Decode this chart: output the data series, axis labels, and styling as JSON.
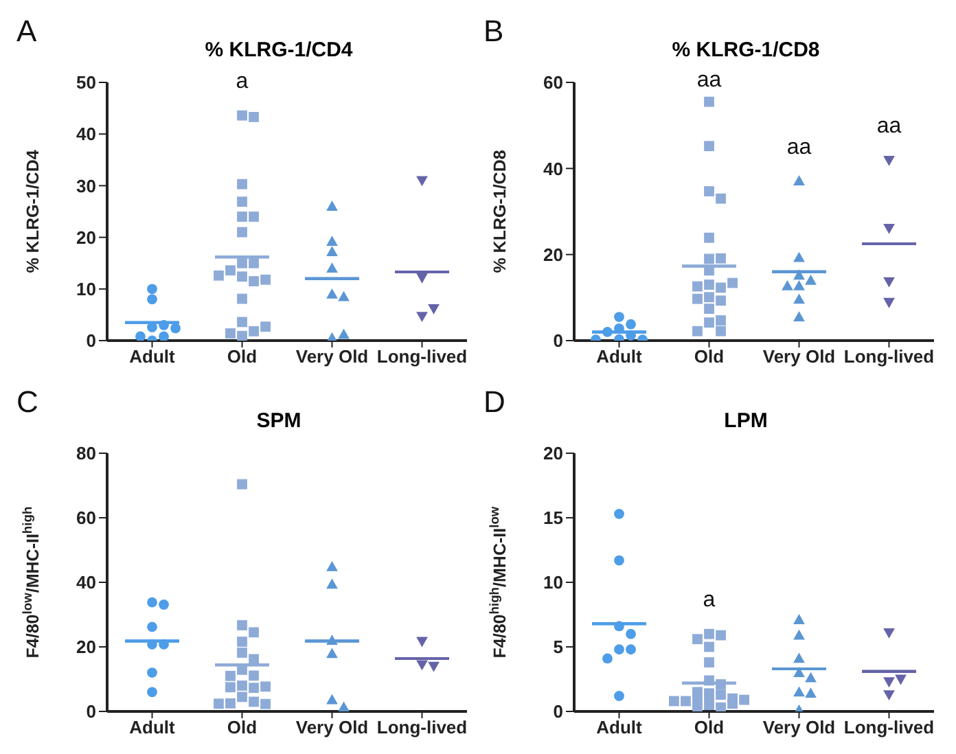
{
  "chart_data": [
    {
      "type": "scatter",
      "title": "% KLRG-1/CD4",
      "ylabel": "% KLRG-1/CD4",
      "categories": [
        "Adult",
        "Old",
        "Very Old",
        "Long-lived"
      ],
      "ylim": [
        0,
        50
      ],
      "yticks": [
        0,
        10,
        20,
        30,
        40,
        50
      ],
      "grid": false,
      "legend": false,
      "annotations": [
        "A",
        "a"
      ],
      "series": [
        {
          "type": "scatter",
          "color": "#4d9de8",
          "marker": "circle",
          "x": [
            "Adult",
            "Adult",
            "Adult",
            "Adult",
            "Adult",
            "Adult",
            "Adult",
            "Adult"
          ],
          "values": [
            10,
            8,
            2.6,
            0.8,
            0,
            0.8,
            2.4,
            3
          ]
        },
        {
          "type": "scatter",
          "color": "#8eabd8",
          "marker": "square",
          "x": [
            "Old",
            "Old",
            "Old",
            "Old",
            "Old",
            "Old",
            "Old",
            "Old",
            "Old",
            "Old",
            "Old",
            "Old",
            "Old",
            "Old",
            "Old",
            "Old",
            "Old",
            "Old",
            "Old",
            "Old"
          ],
          "values": [
            43.6,
            43.3,
            30.3,
            26.9,
            24,
            24,
            21,
            15,
            15,
            13.6,
            12.4,
            11.5,
            11.8,
            12.6,
            8.1,
            3.6,
            1.8,
            0.9,
            1.4,
            2.7
          ]
        },
        {
          "type": "scatter",
          "color": "#5b96d4",
          "marker": "triangle",
          "x": [
            "Very Old",
            "Very Old",
            "Very Old",
            "Very Old",
            "Very Old",
            "Very Old",
            "Very Old",
            "Very Old"
          ],
          "values": [
            26,
            19.2,
            17.2,
            14,
            9,
            8.5,
            0.5,
            1.2
          ]
        },
        {
          "type": "scatter",
          "color": "#6563a8",
          "marker": "triangle-down",
          "x": [
            "Long-lived",
            "Long-lived",
            "Long-lived",
            "Long-lived"
          ],
          "values": [
            31,
            12.2,
            4.7,
            6.2
          ]
        },
        {
          "type": "box",
          "colors": [
            "#4d9de8",
            "#8eabd8",
            "#5b96d4",
            "#6563a8"
          ],
          "boxes": [
            {
              "low": 3.5,
              "q1": 3.5,
              "median": 3.5,
              "q3": 3.5,
              "high": 3.5
            },
            {
              "low": 16.2,
              "q1": 16.2,
              "median": 16.2,
              "q3": 16.2,
              "high": 16.2
            },
            {
              "low": 12,
              "q1": 12,
              "median": 12,
              "q3": 12,
              "high": 12
            },
            {
              "low": 13.3,
              "q1": 13.3,
              "median": 13.3,
              "q3": 13.3,
              "high": 13.3
            }
          ]
        }
      ]
    },
    {
      "type": "scatter",
      "title": "% KLRG-1/CD8",
      "ylabel": "% KLRG-1/CD8",
      "categories": [
        "Adult",
        "Old",
        "Very Old",
        "Long-lived"
      ],
      "ylim": [
        0,
        60
      ],
      "yticks": [
        0,
        20,
        40,
        60
      ],
      "grid": false,
      "legend": false,
      "annotations": [
        "B",
        "aa",
        "aa",
        "aa"
      ],
      "series": [
        {
          "type": "scatter",
          "color": "#4d9de8",
          "marker": "circle",
          "x": [
            "Adult",
            "Adult",
            "Adult",
            "Adult",
            "Adult",
            "Adult",
            "Adult",
            "Adult"
          ],
          "values": [
            5.5,
            3.8,
            2.8,
            2,
            1.2,
            0.3,
            0.2,
            0.2
          ]
        },
        {
          "type": "scatter",
          "color": "#8eabd8",
          "marker": "square",
          "x": [
            "Old",
            "Old",
            "Old",
            "Old",
            "Old",
            "Old",
            "Old",
            "Old",
            "Old",
            "Old",
            "Old",
            "Old",
            "Old",
            "Old",
            "Old",
            "Old",
            "Old",
            "Old",
            "Old",
            "Old"
          ],
          "values": [
            55.5,
            45.2,
            34.7,
            33,
            23.9,
            19,
            19.1,
            16.3,
            13,
            12.3,
            12.6,
            13.4,
            10.1,
            9.3,
            9.7,
            7.4,
            4.2,
            4.7,
            2.2,
            2.2
          ]
        },
        {
          "type": "scatter",
          "color": "#5b96d4",
          "marker": "triangle",
          "x": [
            "Very Old",
            "Very Old",
            "Very Old",
            "Very Old",
            "Very Old",
            "Very Old",
            "Very Old",
            "Very Old"
          ],
          "values": [
            37.1,
            19.3,
            15.2,
            14,
            12.7,
            12.7,
            9.6,
            5.5
          ]
        },
        {
          "type": "scatter",
          "color": "#6563a8",
          "marker": "triangle-down",
          "x": [
            "Long-lived",
            "Long-lived",
            "Long-lived",
            "Long-lived"
          ],
          "values": [
            41.9,
            26.1,
            13.7,
            8.9
          ]
        },
        {
          "type": "box",
          "colors": [
            "#4d9de8",
            "#8eabd8",
            "#5b96d4",
            "#6563a8"
          ],
          "boxes": [
            {
              "low": 2,
              "q1": 2,
              "median": 2,
              "q3": 2,
              "high": 2
            },
            {
              "low": 17.3,
              "q1": 17.3,
              "median": 17.3,
              "q3": 17.3,
              "high": 17.3
            },
            {
              "low": 16,
              "q1": 16,
              "median": 16,
              "q3": 16,
              "high": 16
            },
            {
              "low": 22.5,
              "q1": 22.5,
              "median": 22.5,
              "q3": 22.5,
              "high": 22.5
            }
          ]
        }
      ]
    },
    {
      "type": "scatter",
      "title": "SPM",
      "ylabel": "F4/80$^{low}$/MHC-II$^{high}$",
      "categories": [
        "Adult",
        "Old",
        "Very Old",
        "Long-lived"
      ],
      "ylim": [
        0,
        80
      ],
      "yticks": [
        0,
        20,
        40,
        60,
        80
      ],
      "grid": false,
      "legend": false,
      "annotations": [
        "C"
      ],
      "series": [
        {
          "type": "scatter",
          "color": "#4d9de8",
          "marker": "circle",
          "x": [
            "Adult",
            "Adult",
            "Adult",
            "Adult",
            "Adult",
            "Adult",
            "Adult"
          ],
          "values": [
            33.8,
            33.1,
            26.2,
            20.8,
            20.8,
            12,
            6
          ]
        },
        {
          "type": "scatter",
          "color": "#8eabd8",
          "marker": "square",
          "x": [
            "Old",
            "Old",
            "Old",
            "Old",
            "Old",
            "Old",
            "Old",
            "Old",
            "Old",
            "Old",
            "Old",
            "Old",
            "Old",
            "Old",
            "Old",
            "Old",
            "Old",
            "Old"
          ],
          "values": [
            70.4,
            26.7,
            24.5,
            21.6,
            18.2,
            16.2,
            12.9,
            11.1,
            11,
            8,
            7.3,
            7.5,
            7.7,
            4.5,
            3,
            2.5,
            2.3,
            2.4
          ]
        },
        {
          "type": "scatter",
          "color": "#5b96d4",
          "marker": "triangle",
          "x": [
            "Very Old",
            "Very Old",
            "Very Old",
            "Very Old",
            "Very Old",
            "Very Old"
          ],
          "values": [
            44.8,
            39.4,
            22,
            17.9,
            3.6,
            1.3
          ]
        },
        {
          "type": "scatter",
          "color": "#6563a8",
          "marker": "triangle-down",
          "x": [
            "Long-lived",
            "Long-lived",
            "Long-lived"
          ],
          "values": [
            21.7,
            14.5,
            14
          ]
        },
        {
          "type": "box",
          "colors": [
            "#4d9de8",
            "#8eabd8",
            "#5b96d4",
            "#6563a8"
          ],
          "boxes": [
            {
              "low": 21.8,
              "q1": 21.8,
              "median": 21.8,
              "q3": 21.8,
              "high": 21.8
            },
            {
              "low": 14.4,
              "q1": 14.4,
              "median": 14.4,
              "q3": 14.4,
              "high": 14.4
            },
            {
              "low": 21.8,
              "q1": 21.8,
              "median": 21.8,
              "q3": 21.8,
              "high": 21.8
            },
            {
              "low": 16.4,
              "q1": 16.4,
              "median": 16.4,
              "q3": 16.4,
              "high": 16.4
            }
          ]
        }
      ]
    },
    {
      "type": "scatter",
      "title": "LPM",
      "ylabel": "F4/80$^{high}$/MHC-II$^{low}$",
      "categories": [
        "Adult",
        "Old",
        "Very Old",
        "Long-lived"
      ],
      "ylim": [
        0,
        20
      ],
      "yticks": [
        0,
        5,
        10,
        15,
        20
      ],
      "grid": false,
      "legend": false,
      "annotations": [
        "D",
        "a"
      ],
      "series": [
        {
          "type": "scatter",
          "color": "#4d9de8",
          "marker": "circle",
          "x": [
            "Adult",
            "Adult",
            "Adult",
            "Adult",
            "Adult",
            "Adult",
            "Adult",
            "Adult"
          ],
          "values": [
            15.3,
            11.7,
            6.6,
            6,
            4.8,
            4.8,
            4.1,
            1.2
          ]
        },
        {
          "type": "scatter",
          "color": "#8eabd8",
          "marker": "square",
          "x": [
            "Old",
            "Old",
            "Old",
            "Old",
            "Old",
            "Old",
            "Old",
            "Old",
            "Old",
            "Old",
            "Old",
            "Old",
            "Old",
            "Old",
            "Old",
            "Old",
            "Old",
            "Old",
            "Old",
            "Old"
          ],
          "values": [
            6,
            5.9,
            5.6,
            5,
            3.8,
            2.4,
            2.1,
            1.4,
            1.3,
            1.5,
            1,
            0.8,
            0.9,
            0.8,
            0.5,
            0.3,
            0.2,
            0.9,
            1,
            0.6
          ]
        },
        {
          "type": "scatter",
          "color": "#5b96d4",
          "marker": "triangle",
          "x": [
            "Very Old",
            "Very Old",
            "Very Old",
            "Very Old",
            "Very Old",
            "Very Old",
            "Very Old",
            "Very Old"
          ],
          "values": [
            7.1,
            5.9,
            4.1,
            3,
            2.6,
            1.5,
            1.4,
            0.1
          ]
        },
        {
          "type": "scatter",
          "color": "#6563a8",
          "marker": "triangle-down",
          "x": [
            "Long-lived",
            "Long-lived",
            "Long-lived",
            "Long-lived"
          ],
          "values": [
            6.1,
            2.3,
            2.5,
            1.3
          ]
        },
        {
          "type": "box",
          "colors": [
            "#4d9de8",
            "#8eabd8",
            "#5b96d4",
            "#6563a8"
          ],
          "boxes": [
            {
              "low": 6.8,
              "q1": 6.8,
              "median": 6.8,
              "q3": 6.8,
              "high": 6.8
            },
            {
              "low": 2.2,
              "q1": 2.2,
              "median": 2.2,
              "q3": 2.2,
              "high": 2.2
            },
            {
              "low": 3.3,
              "q1": 3.3,
              "median": 3.3,
              "q3": 3.3,
              "high": 3.3
            },
            {
              "low": 3.1,
              "q1": 3.1,
              "median": 3.1,
              "q3": 3.1,
              "high": 3.1
            }
          ]
        }
      ]
    }
  ]
}
